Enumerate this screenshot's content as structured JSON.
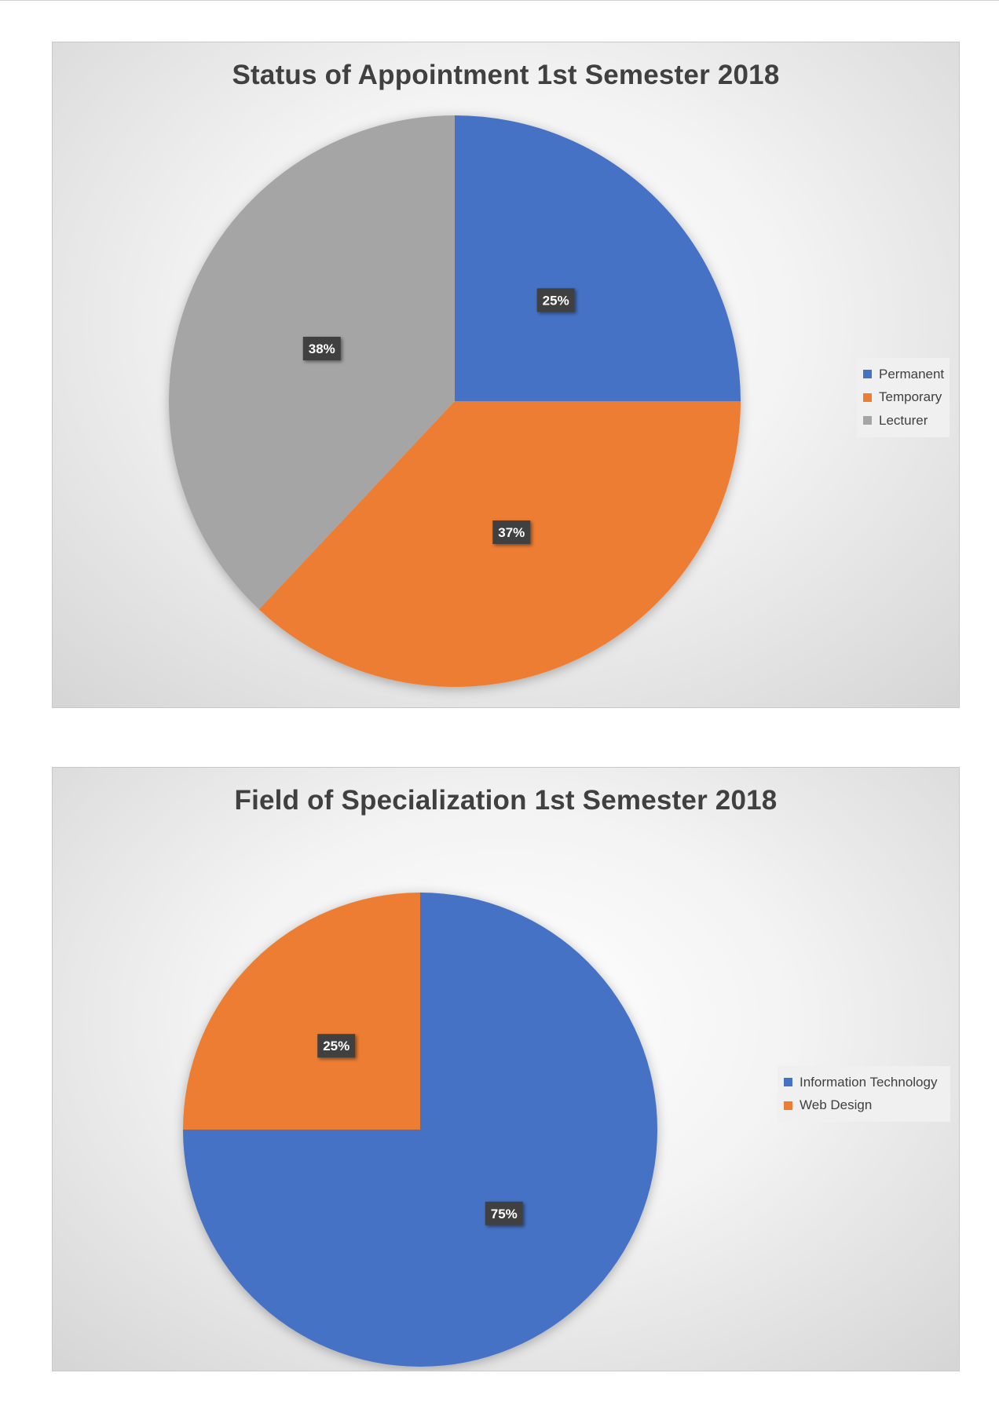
{
  "chart_data": [
    {
      "type": "pie",
      "title": "Status of Appointment 1st Semester 2018",
      "slices": [
        {
          "label": "Permanent",
          "value": 25,
          "display": "25%",
          "color": "#4472C4"
        },
        {
          "label": "Temporary",
          "value": 37,
          "display": "37%",
          "color": "#ED7D31"
        },
        {
          "label": "Lecturer",
          "value": 38,
          "display": "38%",
          "color": "#A5A5A5"
        }
      ],
      "legend_position": "right",
      "start_angle": "12 o'clock, clockwise"
    },
    {
      "type": "pie",
      "title": "Field of Specialization 1st Semester 2018",
      "slices": [
        {
          "label": "Information Technology",
          "value": 75,
          "display": "75%",
          "color": "#4472C4"
        },
        {
          "label": "Web Design",
          "value": 25,
          "display": "25%",
          "color": "#ED7D31"
        }
      ],
      "legend_position": "right",
      "start_angle": "12 o'clock, clockwise"
    }
  ]
}
